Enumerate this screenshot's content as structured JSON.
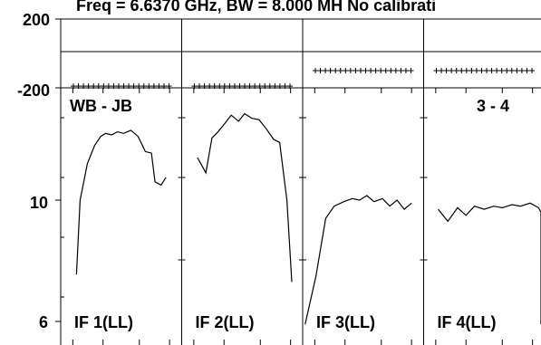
{
  "chart_data": {
    "type": "line",
    "title": "Freq = 6.6370 GHz, BW = 8.000 MH   No calibrati",
    "baseline_label": "WB - JB",
    "right_label": "3 - 4",
    "phase_axis": {
      "ticks": [
        "200",
        "-200"
      ],
      "ylim": [
        -200,
        200
      ]
    },
    "amp_axis": {
      "ticks": [
        "10",
        "6"
      ],
      "ylim": [
        6,
        13
      ]
    },
    "panels": [
      {
        "if_label": "IF 1(LL)",
        "phase": [
          -190,
          -190,
          -190,
          -190,
          -190,
          -190,
          -190,
          -190,
          -190,
          -190,
          -190,
          -190,
          -190,
          -190,
          -190,
          -190,
          -190,
          -190,
          -190,
          -190
        ],
        "amp": {
          "x": [
            0.13,
            0.16,
            0.22,
            0.28,
            0.33,
            0.37,
            0.42,
            0.47,
            0.52,
            0.58,
            0.64,
            0.7,
            0.75,
            0.78,
            0.83,
            0.87
          ],
          "y": [
            7.55,
            10.0,
            11.2,
            11.8,
            12.1,
            12.2,
            12.15,
            12.25,
            12.2,
            12.3,
            12.1,
            11.6,
            11.55,
            10.6,
            10.5,
            10.75
          ]
        }
      },
      {
        "if_label": "IF 2(LL)",
        "phase": [
          -190,
          -190,
          -190,
          -190,
          -190,
          -190,
          -190,
          -190,
          -190,
          -190,
          -190,
          -190,
          -190,
          -190,
          -190,
          -190,
          -190,
          -190,
          -190,
          -190
        ],
        "amp": {
          "x": [
            0.13,
            0.2,
            0.25,
            0.3,
            0.36,
            0.41,
            0.47,
            0.52,
            0.58,
            0.64,
            0.7,
            0.76,
            0.81,
            0.87,
            0.91
          ],
          "y": [
            11.4,
            10.9,
            12.05,
            12.25,
            12.55,
            12.8,
            12.6,
            12.85,
            12.7,
            12.65,
            12.35,
            12.0,
            11.9,
            10.0,
            7.3
          ]
        }
      },
      {
        "if_label": "IF 3(LL)",
        "phase": [
          -100,
          -100,
          -100,
          -100,
          -100,
          -100,
          -100,
          -100,
          -100,
          -100,
          -100,
          -100,
          -100,
          -100,
          -100,
          -100,
          -100,
          -100,
          -100,
          -100
        ],
        "amp": {
          "x": [
            0.02,
            0.11,
            0.19,
            0.26,
            0.34,
            0.41,
            0.47,
            0.53,
            0.59,
            0.66,
            0.72,
            0.78,
            0.84,
            0.9
          ],
          "y": [
            5.9,
            7.5,
            9.4,
            9.8,
            9.95,
            10.05,
            10.0,
            10.15,
            9.95,
            10.05,
            9.8,
            10.0,
            9.7,
            9.9
          ]
        }
      },
      {
        "if_label": "IF 4(LL)",
        "phase": [
          -100,
          -100,
          -100,
          -100,
          -100,
          -100,
          -100,
          -100,
          -100,
          -100,
          -100,
          -100,
          -100,
          -100,
          -100,
          -100,
          -100,
          -100,
          -100,
          -100
        ],
        "amp": {
          "x": [
            0.12,
            0.2,
            0.28,
            0.35,
            0.42,
            0.5,
            0.58,
            0.65,
            0.73,
            0.8,
            0.88,
            0.95,
            1.0,
            1.06,
            1.12,
            1.2
          ],
          "y": [
            9.7,
            9.3,
            9.75,
            9.5,
            9.8,
            9.7,
            9.8,
            9.75,
            9.85,
            9.8,
            9.9,
            9.75,
            9.6,
            8.2,
            6.5,
            5.9
          ]
        }
      }
    ],
    "grid": true,
    "colors": {
      "line": "#000000",
      "background": "#ffffff"
    }
  }
}
